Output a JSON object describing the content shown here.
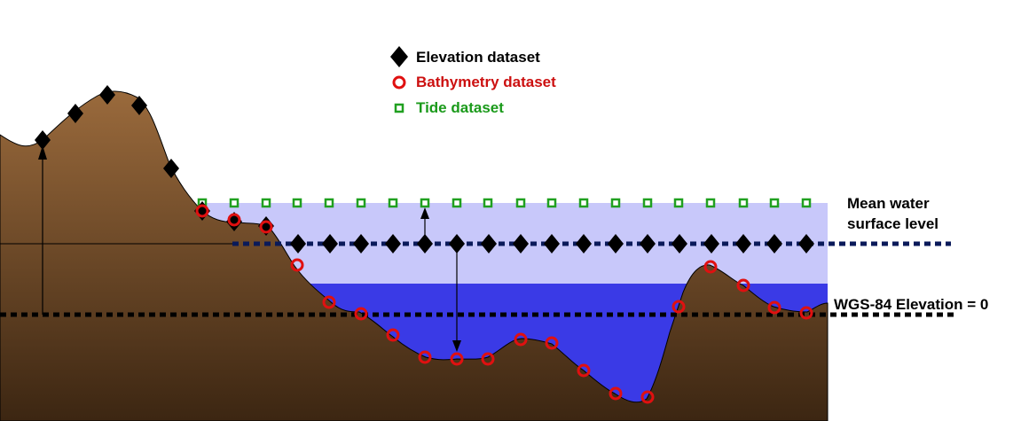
{
  "legend": {
    "elevation_label": "Elevation dataset",
    "bathymetry_label": "Bathymetry dataset",
    "tide_label": "Tide dataset"
  },
  "labels": {
    "mean_water_line1": "Mean water",
    "mean_water_line2": "surface level",
    "wgs84": "WGS-84 Elevation = 0"
  },
  "colors": {
    "terrain_top": "#9a6a3c",
    "terrain_bottom": "#3c2612",
    "water_light": "#c8c8fa",
    "water_deep": "#3a3ae6",
    "elevation_marker": "#000000",
    "bathymetry_marker": "#e01010",
    "tide_marker": "#20a020",
    "dotted_mean": "#0a1a5a",
    "dotted_wgs": "#000000",
    "bathymetry_text": "#cc1010",
    "tide_text": "#1a9a1a"
  },
  "icons": [
    "diamond-icon",
    "ring-icon",
    "square-icon",
    "arrow-up-icon",
    "arrow-down-icon"
  ]
}
